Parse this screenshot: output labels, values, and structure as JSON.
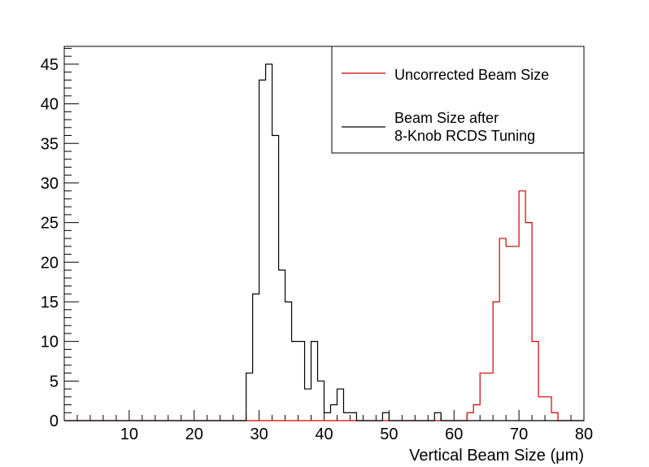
{
  "chart_data": {
    "type": "histogram",
    "xlabel": "Vertical Beam Size (μm)",
    "ylabel": "",
    "xlim": [
      0,
      80
    ],
    "ylim": [
      0,
      47.25
    ],
    "bin_width": 1,
    "bin_start": 0,
    "x_ticks": [
      10,
      20,
      30,
      40,
      50,
      60,
      70,
      80
    ],
    "y_ticks": [
      0,
      5,
      10,
      15,
      20,
      25,
      30,
      35,
      40,
      45
    ],
    "grid": false,
    "legend_position": "top-right",
    "series": [
      {
        "name": "Uncorrected Beam Size",
        "color": "#cc0000",
        "bins": [
          {
            "x": 62,
            "count": 1
          },
          {
            "x": 63,
            "count": 2
          },
          {
            "x": 64,
            "count": 6
          },
          {
            "x": 65,
            "count": 6
          },
          {
            "x": 66,
            "count": 15
          },
          {
            "x": 67,
            "count": 23
          },
          {
            "x": 68,
            "count": 22
          },
          {
            "x": 69,
            "count": 22
          },
          {
            "x": 70,
            "count": 29
          },
          {
            "x": 71,
            "count": 25
          },
          {
            "x": 72,
            "count": 10
          },
          {
            "x": 73,
            "count": 3
          },
          {
            "x": 74,
            "count": 3
          },
          {
            "x": 75,
            "count": 1
          }
        ]
      },
      {
        "name": "Beam Size after\n8-Knob RCDS Tuning",
        "color": "#000000",
        "bins": [
          {
            "x": 28,
            "count": 6
          },
          {
            "x": 29,
            "count": 16
          },
          {
            "x": 30,
            "count": 43
          },
          {
            "x": 31,
            "count": 45
          },
          {
            "x": 32,
            "count": 36
          },
          {
            "x": 33,
            "count": 19
          },
          {
            "x": 34,
            "count": 15
          },
          {
            "x": 35,
            "count": 10
          },
          {
            "x": 36,
            "count": 10
          },
          {
            "x": 37,
            "count": 4
          },
          {
            "x": 38,
            "count": 10
          },
          {
            "x": 39,
            "count": 5
          },
          {
            "x": 40,
            "count": 1
          },
          {
            "x": 41,
            "count": 2
          },
          {
            "x": 42,
            "count": 4
          },
          {
            "x": 43,
            "count": 1
          },
          {
            "x": 44,
            "count": 1
          },
          {
            "x": 49,
            "count": 1
          },
          {
            "x": 57,
            "count": 1
          }
        ]
      }
    ]
  }
}
